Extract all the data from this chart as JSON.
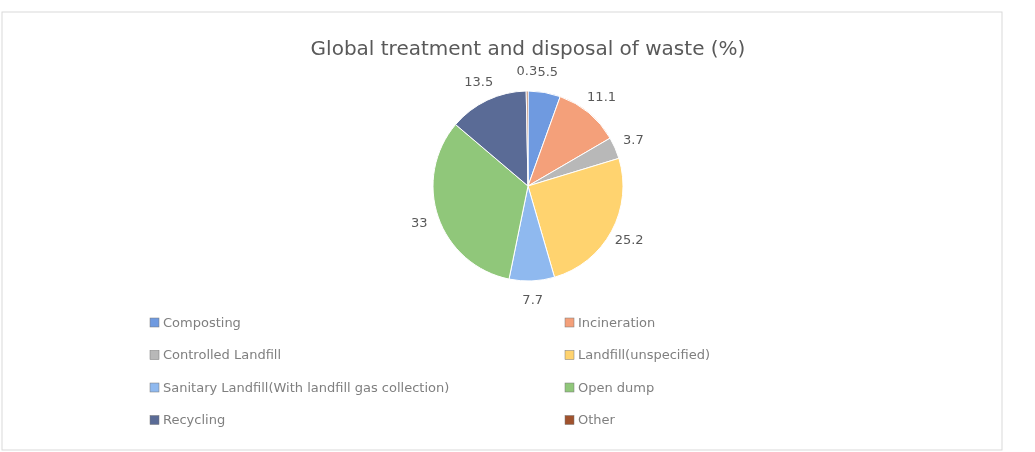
{
  "chart_data": {
    "type": "pie",
    "title": "Global treatment and disposal of waste (%)",
    "categories": [
      "Composting",
      "Incineration",
      "Controlled Landfill",
      "Landfill(unspecified)",
      "Sanitary Landfill(With landfill gas collection)",
      "Open dump",
      "Recycling",
      "Other"
    ],
    "values": [
      5.5,
      11.1,
      3.7,
      25.2,
      7.7,
      33,
      13.5,
      0.3
    ],
    "colors": [
      "#6f9ae0",
      "#f4a07a",
      "#b8b8b8",
      "#ffd36f",
      "#8fb9ef",
      "#90c77a",
      "#5a6b96",
      "#a0522d"
    ],
    "data_labels": true,
    "legend": "bottom"
  }
}
